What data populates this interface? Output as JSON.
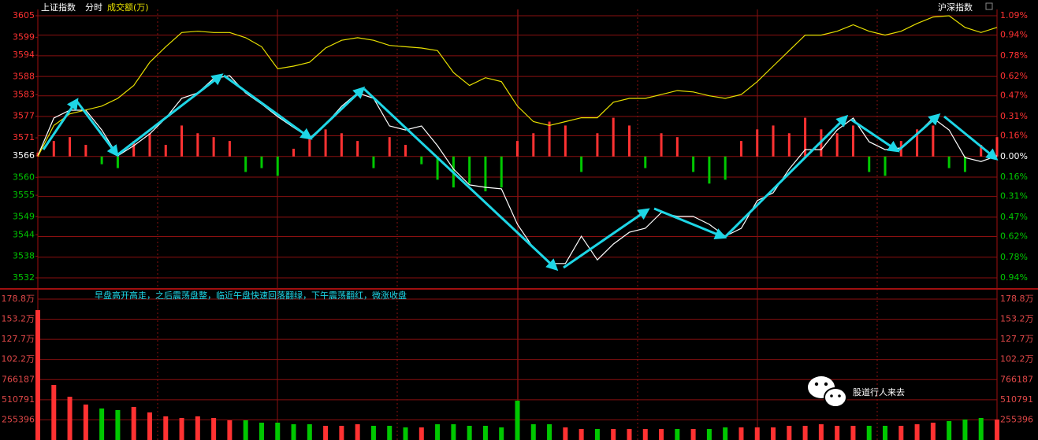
{
  "header": {
    "name": "上证指数",
    "mode": "分时",
    "indicator": "成交额(万)",
    "right": "沪深指数"
  },
  "annotation": "早盘高开高走，之后震荡盘整，临近午盘快速回落翻绿，下午震荡翻红，微涨收盘",
  "watermark": "股道行人来去",
  "chart_data": [
    {
      "type": "line",
      "ylim": [
        3532,
        3605
      ],
      "yticks": [
        3605,
        3599,
        3594,
        3588,
        3583,
        3577,
        3571,
        3566,
        3560,
        3555,
        3549,
        3544,
        3538,
        3532
      ],
      "y2lim": [
        -0.94,
        1.09
      ],
      "y2ticks": [
        {
          "value": 1.09,
          "label": "1.09%"
        },
        {
          "value": 0.94,
          "label": "0.94%"
        },
        {
          "value": 0.78,
          "label": "0.78%"
        },
        {
          "value": 0.62,
          "label": "0.62%"
        },
        {
          "value": 0.47,
          "label": "0.47%"
        },
        {
          "value": 0.31,
          "label": "0.31%"
        },
        {
          "value": 0.16,
          "label": "0.16%"
        },
        {
          "value": 0,
          "label": "0.00%"
        },
        {
          "value": -0.16,
          "label": "0.16%"
        },
        {
          "value": -0.31,
          "label": "0.31%"
        },
        {
          "value": -0.47,
          "label": "0.47%"
        },
        {
          "value": -0.62,
          "label": "0.62%"
        },
        {
          "value": -0.78,
          "label": "0.78%"
        },
        {
          "value": -0.94,
          "label": "0.94%"
        }
      ],
      "up_color": "#ff3232",
      "down_color": "#00c800",
      "flat_color": "#ffffff",
      "series": [
        {
          "color": "#ffffff",
          "values": [
            3566.0,
            3576.5,
            3578.7,
            3578.7,
            3573.2,
            3566.0,
            3568.8,
            3572.1,
            3576.5,
            3582.0,
            3583.5,
            3587.5,
            3588.3,
            3583.5,
            3580.4,
            3576.9,
            3573.9,
            3571.0,
            3574.7,
            3579.8,
            3583.5,
            3582.0,
            3574.3,
            3573.2,
            3574.3,
            3568.8,
            3562.3,
            3557.9,
            3557.2,
            3556.8,
            3546.9,
            3540.3,
            3536.0,
            3536.0,
            3543.6,
            3537.0,
            3541.4,
            3544.7,
            3545.8,
            3550.2,
            3549.1,
            3549.1,
            3546.9,
            3543.6,
            3545.8,
            3553.5,
            3555.7,
            3562.3,
            3567.7,
            3567.7,
            3573.2,
            3576.5,
            3569.9,
            3567.7,
            3568.2,
            3572.1,
            3576.5,
            3573.2,
            3565.5,
            3564.4,
            3566.0
          ]
        },
        {
          "color": "#e8e000",
          "axis": "y2",
          "values": [
            0.0,
            0.24,
            0.33,
            0.36,
            0.39,
            0.45,
            0.55,
            0.73,
            0.85,
            0.96,
            0.97,
            0.96,
            0.96,
            0.92,
            0.85,
            0.68,
            0.7,
            0.73,
            0.84,
            0.9,
            0.92,
            0.9,
            0.86,
            0.85,
            0.84,
            0.82,
            0.65,
            0.55,
            0.61,
            0.58,
            0.39,
            0.27,
            0.24,
            0.27,
            0.3,
            0.3,
            0.42,
            0.45,
            0.45,
            0.48,
            0.51,
            0.5,
            0.47,
            0.45,
            0.48,
            0.58,
            0.7,
            0.82,
            0.94,
            0.94,
            0.97,
            1.02,
            0.97,
            0.94,
            0.97,
            1.03,
            1.08,
            1.09,
            1.0,
            0.96,
            1.0
          ]
        },
        {
          "type": "bar",
          "axis": "y2",
          "values": [
            0.03,
            0.12,
            0.15,
            0.09,
            -0.06,
            -0.09,
            0.12,
            0.18,
            0.09,
            0.24,
            0.18,
            0.15,
            0.12,
            -0.12,
            -0.09,
            -0.15,
            0.06,
            0.15,
            0.21,
            0.18,
            0.12,
            -0.09,
            0.15,
            0.09,
            -0.06,
            -0.18,
            -0.24,
            -0.21,
            -0.27,
            -0.24,
            0.12,
            0.18,
            0.27,
            0.24,
            -0.12,
            0.18,
            0.3,
            0.24,
            -0.09,
            0.18,
            0.15,
            -0.12,
            -0.21,
            -0.18,
            0.12,
            0.21,
            0.24,
            0.18,
            0.3,
            0.21,
            0.18,
            0.24,
            -0.12,
            -0.15,
            0.12,
            0.21,
            0.24,
            -0.09,
            -0.12,
            0.09,
            0.15
          ]
        }
      ]
    },
    {
      "type": "bar",
      "ylim": [
        0,
        1788000
      ],
      "yticks": [
        {
          "value": 1788000,
          "label": "178.8万"
        },
        {
          "value": 1532000,
          "label": "153.2万"
        },
        {
          "value": 1277000,
          "label": "127.7万"
        },
        {
          "value": 1022000,
          "label": "102.2万"
        },
        766187,
        510791,
        255396
      ],
      "values": [
        1648000,
        699000,
        549000,
        450000,
        400000,
        380000,
        420000,
        350000,
        300000,
        280000,
        300000,
        280000,
        250000,
        250000,
        220000,
        220000,
        200000,
        200000,
        180000,
        180000,
        200000,
        180000,
        180000,
        160000,
        160000,
        200000,
        200000,
        180000,
        180000,
        160000,
        499000,
        200000,
        200000,
        160000,
        140000,
        140000,
        140000,
        140000,
        140000,
        140000,
        140000,
        140000,
        140000,
        160000,
        160000,
        160000,
        160000,
        180000,
        180000,
        200000,
        180000,
        180000,
        180000,
        180000,
        180000,
        200000,
        220000,
        240000,
        260000,
        280000,
        260000
      ]
    }
  ]
}
